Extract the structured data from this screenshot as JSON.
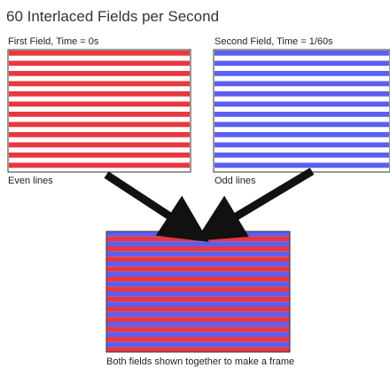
{
  "title": "60 Interlaced Fields per Second",
  "fields": [
    {
      "id": "first",
      "caption": "First Field, Time = 0s",
      "bottom_label": "Even lines",
      "stripe_color": "#e8373f",
      "stripe_count": 12
    },
    {
      "id": "second",
      "caption": "Second Field, Time = 1/60s",
      "bottom_label": "Odd lines",
      "stripe_color": "#5b5ff0",
      "stripe_count": 12
    }
  ],
  "combined": {
    "caption": "Both fields shown together to make a frame",
    "colors": [
      "#5b5ff0",
      "#e8373f"
    ],
    "stripe_count": 24
  },
  "arrow_color": "#111111"
}
